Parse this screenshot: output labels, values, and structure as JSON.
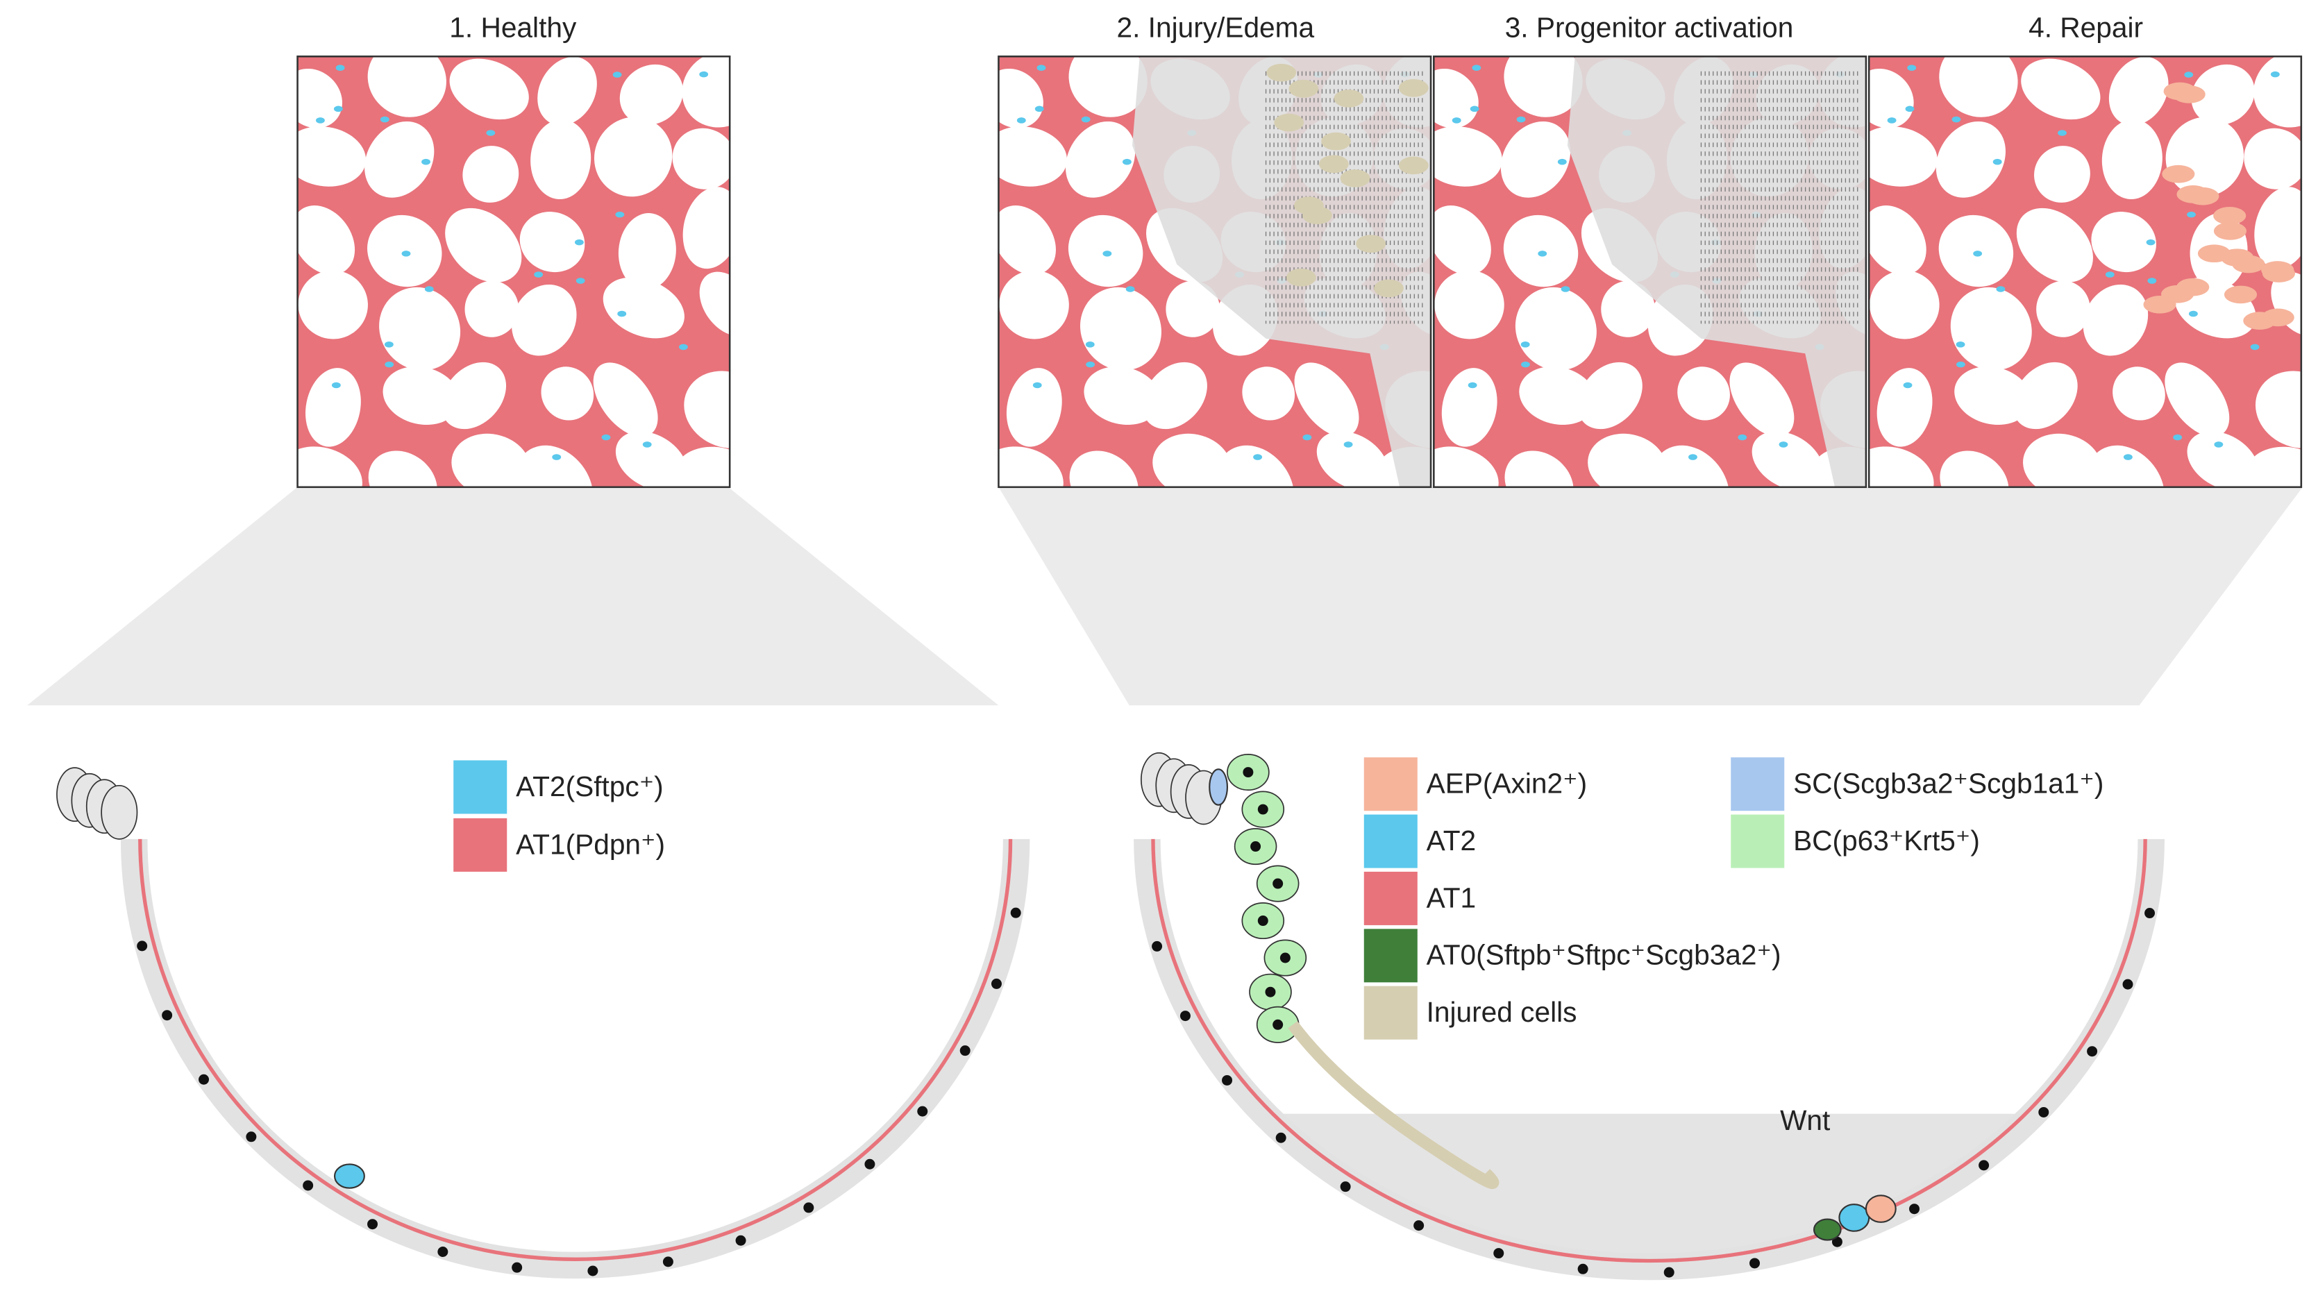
{
  "titles": [
    "1. Healthy",
    "2. Injury/Edema",
    "3. Progenitor activation",
    "4. Repair"
  ],
  "legend_healthy": [
    {
      "label": "AT2(Sftpc⁺)",
      "color": "#5bc8ec"
    },
    {
      "label": "AT1(Pdpn⁺)",
      "color": "#e8737b"
    }
  ],
  "legend_injury": [
    {
      "label": "AEP(Axin2⁺)",
      "color": "#f6b49b"
    },
    {
      "label": "AT2",
      "color": "#5bc8ec"
    },
    {
      "label": "AT1",
      "color": "#e8737b"
    },
    {
      "label": "AT0(Sftpb⁺Sftpc⁺Scgb3a2⁺)",
      "color": "#3f7f3a"
    },
    {
      "label": "Injured cells",
      "color": "#d6ceb1"
    },
    {
      "label": "SC(Scgb3a2⁺Scgb1a1⁺)",
      "color": "#a7c7ef"
    },
    {
      "label": "BC(p63⁺Krt5⁺)",
      "color": "#b9efb7"
    }
  ],
  "annotation": "Wnt"
}
